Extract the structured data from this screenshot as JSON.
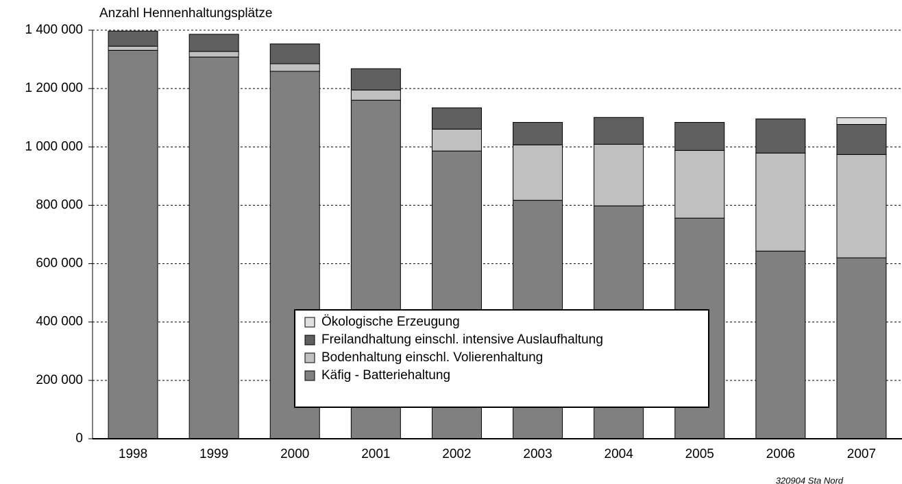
{
  "chart_data": {
    "type": "stacked_bar",
    "y_axis_label": "Anzahl Hennenhaltungsplätze",
    "source": "320904 Sta Nord",
    "categories": [
      "1998",
      "1999",
      "2000",
      "2001",
      "2002",
      "2003",
      "2004",
      "2005",
      "2006",
      "2007"
    ],
    "series": [
      {
        "name": "Käfig - Batteriehaltung",
        "color": "#808080",
        "values": [
          1331000,
          1308000,
          1259000,
          1160000,
          986000,
          817000,
          798000,
          756000,
          643000,
          620000
        ]
      },
      {
        "name": "Bodenhaltung einschl. Volierenhaltung",
        "color": "#c0c0c0",
        "values": [
          14000,
          19000,
          26000,
          35000,
          75000,
          190000,
          211000,
          232000,
          336000,
          354000
        ]
      },
      {
        "name": "Freilandhaltung einschl. intensive Auslaufhaltung",
        "color": "#606060",
        "values": [
          52000,
          59000,
          68000,
          73000,
          73000,
          77000,
          92000,
          96000,
          117000,
          103000
        ]
      },
      {
        "name": "Ökologische Erzeugung",
        "color": "#e0e0e0",
        "values": [
          0,
          0,
          0,
          0,
          0,
          0,
          0,
          0,
          0,
          23000
        ]
      }
    ],
    "ylim": [
      0,
      1400000
    ],
    "yticks": [
      0,
      {
        "value": 200000,
        "label": "200 000"
      },
      {
        "value": 400000,
        "label": "400 000"
      },
      {
        "value": 600000,
        "label": "600 000"
      },
      {
        "value": 800000,
        "label": "800 000"
      },
      {
        "value": 1000000,
        "label": "1 000 000"
      },
      {
        "value": 1200000,
        "label": "1 200 000"
      },
      {
        "value": 1400000,
        "label": "1 400 000"
      }
    ],
    "grid": true
  }
}
